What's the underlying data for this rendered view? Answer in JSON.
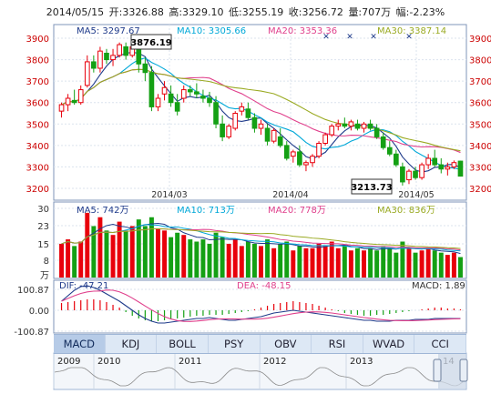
{
  "header": {
    "date": "2014/05/15",
    "open": "开:3326.88",
    "high": "高:3329.10",
    "low": "低:3255.19",
    "close": "收:3256.72",
    "volume": "量:707万",
    "change": "幅:-2.23%"
  },
  "colors": {
    "up": "#e8000b",
    "down": "#14a014",
    "ma5": "#1e3a8a",
    "ma10": "#00a8d8",
    "ma20": "#e0408c",
    "ma30": "#9aaa22",
    "axis_text": "#cc0000"
  },
  "price_panel": {
    "ma_legend": [
      {
        "label": "MA5: 3297.67",
        "color": "#1e3a8a"
      },
      {
        "label": "MA10: 3305.66",
        "color": "#00a8d8"
      },
      {
        "label": "MA20: 3353.36",
        "color": "#e0408c"
      },
      {
        "label": "MA30: 3387.14",
        "color": "#9aaa22"
      }
    ],
    "y_ticks": [
      "3900",
      "3800",
      "3700",
      "3600",
      "3500",
      "3400",
      "3300",
      "3200"
    ],
    "x_ticks": [
      "2014/03",
      "2014/04",
      "2014/05"
    ],
    "high_callout": "3876.19",
    "low_callout": "3213.73"
  },
  "volume_panel": {
    "ma_legend": [
      {
        "label": "MA5: 742万",
        "color": "#1e3a8a"
      },
      {
        "label": "MA10: 713万",
        "color": "#00a8d8"
      },
      {
        "label": "MA20: 778万",
        "color": "#e0408c"
      },
      {
        "label": "MA30: 836万",
        "color": "#9aaa22"
      }
    ],
    "y_ticks": [
      "30",
      "23",
      "15",
      "8",
      "万"
    ]
  },
  "macd_panel": {
    "dif_label": "DIF: -47.21",
    "dea_label": "DEA: -48.15",
    "macd_label": "MACD: 1.89",
    "y_ticks": [
      "100.87",
      "0.00",
      "-100.87"
    ]
  },
  "indicator_tabs": [
    "MACD",
    "KDJ",
    "BOLL",
    "PSY",
    "OBV",
    "RSI",
    "WVAD",
    "CCI"
  ],
  "active_tab": "MACD",
  "timeline": {
    "years": [
      "2009",
      "2010",
      "2011",
      "2012",
      "2013",
      "14"
    ]
  }
}
